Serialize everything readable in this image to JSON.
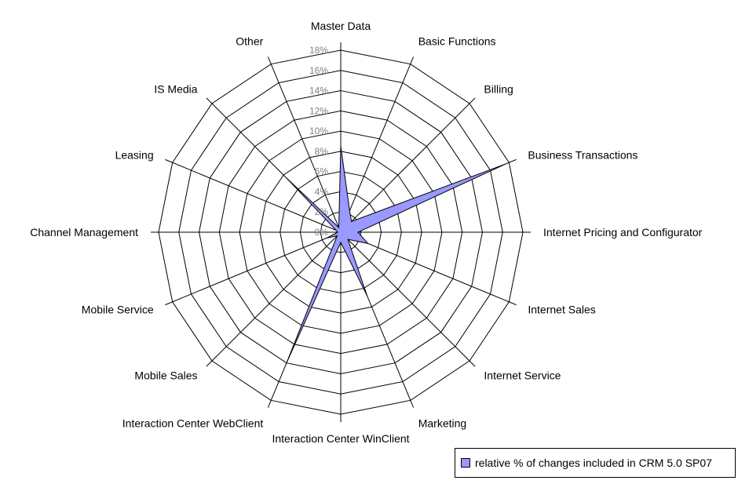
{
  "chart_data": {
    "type": "radar",
    "categories": [
      "Master Data",
      "Basic Functions",
      "Billing",
      "Business Transactions",
      "Internet Pricing and Configurator",
      "Internet Sales",
      "Internet Service",
      "Marketing",
      "Interaction Center WinClient",
      "Interaction Center WebClient",
      "Mobile Sales",
      "Mobile Service",
      "Channel Management",
      "Leasing",
      "IS Media",
      "Other"
    ],
    "series": [
      {
        "name": "relative % of changes included in CRM 5.0 SP07",
        "values": [
          8.5,
          2.3,
          1.5,
          17.6,
          1.7,
          2.9,
          1.0,
          6.8,
          1.0,
          13.9,
          0.5,
          1.5,
          0.3,
          0.5,
          7.5,
          0.5
        ],
        "color": "#9999ff"
      }
    ],
    "r_ticks": [
      "0%",
      "2%",
      "4%",
      "6%",
      "8%",
      "10%",
      "12%",
      "14%",
      "16%",
      "18%"
    ],
    "r_max": 18,
    "grid": true,
    "legend_position": "bottom-right"
  }
}
